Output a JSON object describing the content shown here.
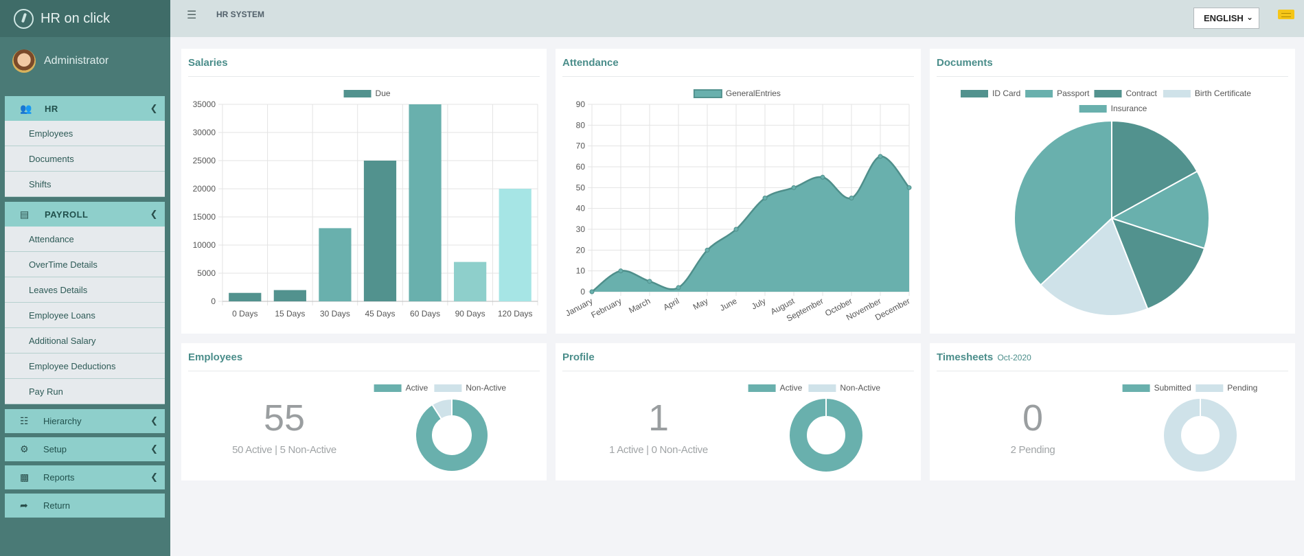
{
  "app": {
    "brand": "HR on click",
    "user": "Administrator",
    "header": "HR SYSTEM",
    "language": "ENGLISH"
  },
  "sidebar": {
    "hr": {
      "label": "HR",
      "items": [
        "Employees",
        "Documents",
        "Shifts"
      ]
    },
    "payroll": {
      "label": "PAYROLL",
      "items": [
        "Attendance",
        "OverTime Details",
        "Leaves Details",
        "Employee Loans",
        "Additional Salary",
        "Employee Deductions",
        "Pay Run"
      ]
    },
    "plain": [
      "Hierarchy",
      "Setup",
      "Reports",
      "Return"
    ]
  },
  "cards": {
    "salaries": {
      "title": "Salaries"
    },
    "attendance": {
      "title": "Attendance"
    },
    "documents": {
      "title": "Documents"
    },
    "employees": {
      "title": "Employees",
      "number": "55",
      "subtext": "50 Active | 5 Non-Active"
    },
    "profile": {
      "title": "Profile",
      "number": "1",
      "subtext": "1 Active | 0 Non-Active"
    },
    "timesheets": {
      "title": "Timesheets",
      "period": "Oct-2020",
      "number": "0",
      "subtext": "2 Pending"
    }
  },
  "colors": {
    "teal_dark": "#52928e",
    "teal": "#69b0ad",
    "teal_light": "#8ecfcb",
    "aqua": "#a6e5e5",
    "pale": "#cfe2e9"
  },
  "chart_data": [
    {
      "id": "salaries",
      "type": "bar",
      "legend": [
        "Due"
      ],
      "categories": [
        "0 Days",
        "15 Days",
        "30 Days",
        "45 Days",
        "60 Days",
        "90 Days",
        "120 Days"
      ],
      "values": [
        1500,
        2000,
        13000,
        25000,
        35000,
        7000,
        20000
      ],
      "bar_colors": [
        "#52928e",
        "#52928e",
        "#69b0ad",
        "#52928e",
        "#69b0ad",
        "#8ecfcb",
        "#a6e5e5"
      ],
      "ylim": [
        0,
        35000
      ],
      "yticks": [
        0,
        5000,
        10000,
        15000,
        20000,
        25000,
        30000,
        35000
      ],
      "grid": true,
      "legend_position": "top"
    },
    {
      "id": "attendance",
      "type": "area",
      "legend": [
        "GeneralEntries"
      ],
      "categories": [
        "January",
        "February",
        "March",
        "April",
        "May",
        "June",
        "July",
        "August",
        "September",
        "October",
        "November",
        "December"
      ],
      "values": [
        0,
        10,
        5,
        2,
        20,
        30,
        45,
        50,
        55,
        45,
        65,
        50
      ],
      "ylim": [
        0,
        90
      ],
      "yticks": [
        0,
        10,
        20,
        30,
        40,
        50,
        60,
        70,
        80,
        90
      ],
      "grid": true,
      "legend_position": "top"
    },
    {
      "id": "documents",
      "type": "pie",
      "legend": [
        "ID Card",
        "Passport",
        "Contract",
        "Birth Certificate",
        "Insurance"
      ],
      "values": [
        17,
        13,
        14,
        19,
        37
      ],
      "colors": [
        "#52928e",
        "#69b0ad",
        "#52928e",
        "#cfe2e9",
        "#69b0ad"
      ],
      "legend_position": "top"
    },
    {
      "id": "employees",
      "type": "pie",
      "legend": [
        "Active",
        "Non-Active"
      ],
      "values": [
        50,
        5
      ],
      "colors": [
        "#69b0ad",
        "#cfe2e9"
      ],
      "legend_position": "top"
    },
    {
      "id": "profile",
      "type": "pie",
      "legend": [
        "Active",
        "Non-Active"
      ],
      "values": [
        1,
        0
      ],
      "colors": [
        "#69b0ad",
        "#cfe2e9"
      ],
      "legend_position": "top"
    },
    {
      "id": "timesheets",
      "type": "pie",
      "legend": [
        "Submitted",
        "Pending"
      ],
      "values": [
        0,
        2
      ],
      "colors": [
        "#69b0ad",
        "#cfe2e9"
      ],
      "legend_position": "top"
    }
  ]
}
